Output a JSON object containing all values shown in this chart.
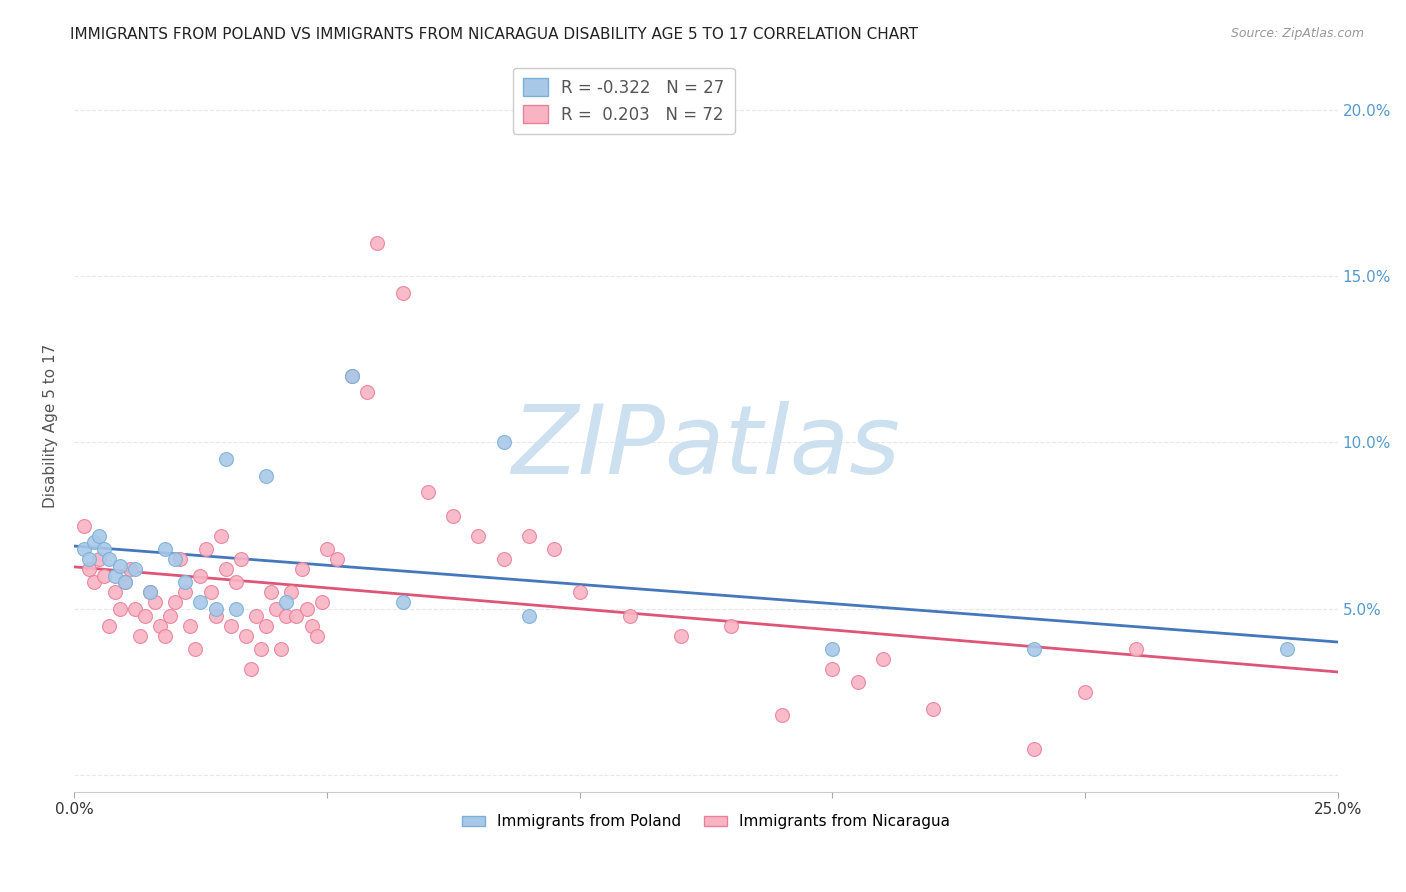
{
  "title": "IMMIGRANTS FROM POLAND VS IMMIGRANTS FROM NICARAGUA DISABILITY AGE 5 TO 17 CORRELATION CHART",
  "source": "Source: ZipAtlas.com",
  "ylabel": "Disability Age 5 to 17",
  "xlim": [
    0.0,
    0.25
  ],
  "ylim": [
    -0.005,
    0.215
  ],
  "xticks": [
    0.0,
    0.05,
    0.1,
    0.15,
    0.2,
    0.25
  ],
  "xtick_labels_show": [
    "0.0%",
    "",
    "",
    "",
    "",
    "25.0%"
  ],
  "yticks": [
    0.0,
    0.05,
    0.1,
    0.15,
    0.2
  ],
  "ytick_labels": [
    "",
    "5.0%",
    "10.0%",
    "15.0%",
    "20.0%"
  ],
  "poland_color": "#a8c8e8",
  "poland_edge": "#7ab0d8",
  "nicaragua_color": "#f9b4c4",
  "nicaragua_edge": "#e88099",
  "poland_line_color": "#4477bb",
  "nicaragua_line_color": "#dd5577",
  "right_yaxis_color": "#5599cc",
  "legend_entries": [
    {
      "label": "Immigrants from Poland",
      "R": "-0.322",
      "N": "27"
    },
    {
      "label": "Immigrants from Nicaragua",
      "R": "0.203",
      "N": "72"
    }
  ],
  "poland_points": [
    [
      0.002,
      0.068
    ],
    [
      0.003,
      0.065
    ],
    [
      0.004,
      0.07
    ],
    [
      0.005,
      0.072
    ],
    [
      0.006,
      0.068
    ],
    [
      0.007,
      0.065
    ],
    [
      0.008,
      0.06
    ],
    [
      0.009,
      0.063
    ],
    [
      0.01,
      0.058
    ],
    [
      0.012,
      0.062
    ],
    [
      0.015,
      0.055
    ],
    [
      0.018,
      0.068
    ],
    [
      0.02,
      0.065
    ],
    [
      0.022,
      0.058
    ],
    [
      0.025,
      0.052
    ],
    [
      0.028,
      0.05
    ],
    [
      0.03,
      0.095
    ],
    [
      0.032,
      0.05
    ],
    [
      0.038,
      0.09
    ],
    [
      0.042,
      0.052
    ],
    [
      0.055,
      0.12
    ],
    [
      0.065,
      0.052
    ],
    [
      0.085,
      0.1
    ],
    [
      0.09,
      0.048
    ],
    [
      0.15,
      0.038
    ],
    [
      0.19,
      0.038
    ],
    [
      0.24,
      0.038
    ]
  ],
  "nicaragua_points": [
    [
      0.002,
      0.075
    ],
    [
      0.003,
      0.062
    ],
    [
      0.004,
      0.058
    ],
    [
      0.005,
      0.065
    ],
    [
      0.006,
      0.06
    ],
    [
      0.007,
      0.045
    ],
    [
      0.008,
      0.055
    ],
    [
      0.009,
      0.05
    ],
    [
      0.01,
      0.058
    ],
    [
      0.011,
      0.062
    ],
    [
      0.012,
      0.05
    ],
    [
      0.013,
      0.042
    ],
    [
      0.014,
      0.048
    ],
    [
      0.015,
      0.055
    ],
    [
      0.016,
      0.052
    ],
    [
      0.017,
      0.045
    ],
    [
      0.018,
      0.042
    ],
    [
      0.019,
      0.048
    ],
    [
      0.02,
      0.052
    ],
    [
      0.021,
      0.065
    ],
    [
      0.022,
      0.055
    ],
    [
      0.023,
      0.045
    ],
    [
      0.024,
      0.038
    ],
    [
      0.025,
      0.06
    ],
    [
      0.026,
      0.068
    ],
    [
      0.027,
      0.055
    ],
    [
      0.028,
      0.048
    ],
    [
      0.029,
      0.072
    ],
    [
      0.03,
      0.062
    ],
    [
      0.031,
      0.045
    ],
    [
      0.032,
      0.058
    ],
    [
      0.033,
      0.065
    ],
    [
      0.034,
      0.042
    ],
    [
      0.035,
      0.032
    ],
    [
      0.036,
      0.048
    ],
    [
      0.037,
      0.038
    ],
    [
      0.038,
      0.045
    ],
    [
      0.039,
      0.055
    ],
    [
      0.04,
      0.05
    ],
    [
      0.041,
      0.038
    ],
    [
      0.042,
      0.048
    ],
    [
      0.043,
      0.055
    ],
    [
      0.044,
      0.048
    ],
    [
      0.045,
      0.062
    ],
    [
      0.046,
      0.05
    ],
    [
      0.047,
      0.045
    ],
    [
      0.048,
      0.042
    ],
    [
      0.049,
      0.052
    ],
    [
      0.05,
      0.068
    ],
    [
      0.052,
      0.065
    ],
    [
      0.055,
      0.12
    ],
    [
      0.058,
      0.115
    ],
    [
      0.06,
      0.16
    ],
    [
      0.065,
      0.145
    ],
    [
      0.07,
      0.085
    ],
    [
      0.075,
      0.078
    ],
    [
      0.08,
      0.072
    ],
    [
      0.085,
      0.065
    ],
    [
      0.09,
      0.072
    ],
    [
      0.095,
      0.068
    ],
    [
      0.1,
      0.055
    ],
    [
      0.11,
      0.048
    ],
    [
      0.12,
      0.042
    ],
    [
      0.13,
      0.045
    ],
    [
      0.14,
      0.018
    ],
    [
      0.15,
      0.032
    ],
    [
      0.155,
      0.028
    ],
    [
      0.16,
      0.035
    ],
    [
      0.17,
      0.02
    ],
    [
      0.19,
      0.008
    ],
    [
      0.2,
      0.025
    ],
    [
      0.21,
      0.038
    ]
  ],
  "watermark": "ZIPatlas",
  "watermark_color": "#cce0f0",
  "background_color": "#ffffff",
  "grid_color": "#e8e8e8"
}
